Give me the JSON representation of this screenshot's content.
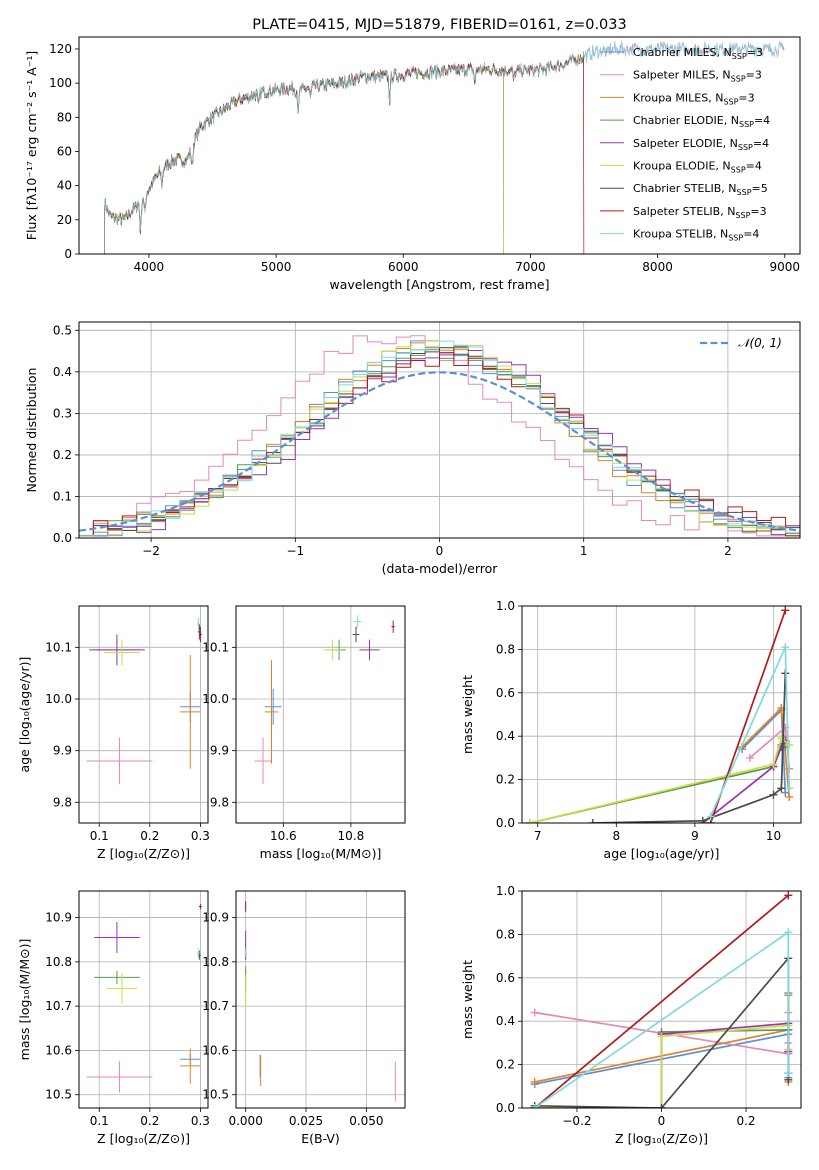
{
  "colors": {
    "Chabrier MILES": "#5b8fd6",
    "Salpeter MILES": "#e58ab8",
    "Kroupa MILES": "#e0822a",
    "Chabrier ELODIE": "#5a9a4a",
    "Salpeter ELODIE": "#9a35b0",
    "Kroupa ELODIE": "#c8de4a",
    "Chabrier STELIB": "#4a4a4a",
    "Salpeter STELIB": "#b01c1c",
    "Kroupa STELIB": "#7edadc",
    "normal": "#5b8fd6"
  },
  "chart_data": [
    {
      "id": "spectrum",
      "type": "line",
      "title": "PLATE=0415, MJD=51879, FIBERID=0161, z=0.033",
      "xlabel": "wavelength [Angstrom, rest frame]",
      "ylabel": "Flux [fλ10⁻¹⁷ erg cm⁻² s⁻¹ A⁻¹]",
      "xlim": [
        3450,
        9120
      ],
      "ylim": [
        0,
        127
      ],
      "xticks": [
        4000,
        5000,
        6000,
        7000,
        8000,
        9000
      ],
      "yticks": [
        0,
        20,
        40,
        60,
        80,
        100,
        120
      ],
      "grid": false,
      "legend": "upper right",
      "continuum": {
        "x": [
          3650,
          3700,
          3800,
          3900,
          4000,
          4100,
          4200,
          4300,
          4400,
          4500,
          4700,
          4900,
          5100,
          5200,
          5300,
          5500,
          5700,
          5900,
          6100,
          6300,
          6500,
          6700,
          6900,
          7100,
          7300,
          7500,
          7600
        ],
        "y": [
          30,
          22,
          20,
          28,
          38,
          50,
          55,
          55,
          74,
          80,
          90,
          95,
          97,
          96,
          98,
          100,
          104,
          104,
          106,
          107,
          108,
          108,
          107,
          108,
          112,
          118,
          120
        ]
      },
      "series": [
        {
          "name": "Chabrier MILES",
          "label": "Chabrier MILES, N",
          "nssp": "=3",
          "x_end": 9000
        },
        {
          "name": "Salpeter MILES",
          "label": "Salpeter MILES, N",
          "nssp": "=3",
          "x_end": 9000
        },
        {
          "name": "Kroupa MILES",
          "label": "Kroupa MILES, N",
          "nssp": "=3",
          "x_end": 7420
        },
        {
          "name": "Chabrier ELODIE",
          "label": "Chabrier ELODIE, N",
          "nssp": "=4",
          "x_end": 6790
        },
        {
          "name": "Salpeter ELODIE",
          "label": "Salpeter ELODIE, N",
          "nssp": "=4",
          "x_end": 6790
        },
        {
          "name": "Kroupa ELODIE",
          "label": "Kroupa ELODIE, N",
          "nssp": "=4",
          "x_end": 6790
        },
        {
          "name": "Chabrier STELIB",
          "label": "Chabrier STELIB, N",
          "nssp": "=5",
          "x_end": 7420
        },
        {
          "name": "Salpeter STELIB",
          "label": "Salpeter STELIB, N",
          "nssp": "=3",
          "x_end": 7420
        },
        {
          "name": "Kroupa STELIB",
          "label": "Kroupa STELIB, N",
          "nssp": "=4",
          "x_end": 9000
        }
      ]
    },
    {
      "id": "residuals",
      "type": "histogram",
      "xlabel": "(data-model)/error",
      "ylabel": "Normed distribution",
      "xlim": [
        -2.5,
        2.5
      ],
      "ylim": [
        0,
        0.52
      ],
      "xticks": [
        -2,
        -1,
        0,
        1,
        2
      ],
      "yticks": [
        0.0,
        0.1,
        0.2,
        0.3,
        0.4,
        0.5
      ],
      "grid": true,
      "legend": "upper right",
      "legend_label": "𝒩(0, 1)",
      "bin_width": 0.1,
      "bin_start": -2.5,
      "series": [
        {
          "name": "Chabrier MILES",
          "shift": -0.05,
          "peak": 0.44
        },
        {
          "name": "Salpeter MILES",
          "shift": -0.35,
          "peak": 0.47
        },
        {
          "name": "Kroupa MILES",
          "shift": -0.05,
          "peak": 0.45
        },
        {
          "name": "Chabrier ELODIE",
          "shift": 0.0,
          "peak": 0.43
        },
        {
          "name": "Salpeter ELODIE",
          "shift": 0.1,
          "peak": 0.44
        },
        {
          "name": "Kroupa ELODIE",
          "shift": 0.0,
          "peak": 0.46
        },
        {
          "name": "Chabrier STELIB",
          "shift": 0.05,
          "peak": 0.42
        },
        {
          "name": "Salpeter STELIB",
          "shift": 0.05,
          "peak": 0.41
        },
        {
          "name": "Kroupa STELIB",
          "shift": 0.0,
          "peak": 0.44
        }
      ]
    },
    {
      "id": "age-vs-Z",
      "type": "scatter",
      "xlabel": "Z [log₁₀(Z/Z⊙)]",
      "ylabel": "age  [log₁₀(age/yr)]",
      "xlim": [
        0.06,
        0.315
      ],
      "ylim": [
        9.76,
        10.18
      ],
      "xticks": [
        0.1,
        0.2,
        0.3
      ],
      "yticks": [
        9.8,
        9.9,
        10.0,
        10.1
      ],
      "grid": true,
      "points": [
        {
          "name": "Chabrier MILES",
          "x": 0.28,
          "y": 9.985,
          "xerr": 0.02,
          "yerr": 0.03
        },
        {
          "name": "Salpeter MILES",
          "x": 0.14,
          "y": 9.88,
          "xerr": 0.065,
          "yerr": 0.045
        },
        {
          "name": "Kroupa MILES",
          "x": 0.28,
          "y": 9.975,
          "xerr": 0.02,
          "yerr": 0.11
        },
        {
          "name": "Chabrier ELODIE",
          "x": 0.135,
          "y": 10.095,
          "xerr": 0.045,
          "yerr": 0.02
        },
        {
          "name": "Salpeter ELODIE",
          "x": 0.135,
          "y": 10.095,
          "xerr": 0.055,
          "yerr": 0.03
        },
        {
          "name": "Kroupa ELODIE",
          "x": 0.145,
          "y": 10.09,
          "xerr": 0.035,
          "yerr": 0.025
        },
        {
          "name": "Chabrier STELIB",
          "x": 0.298,
          "y": 10.13,
          "xerr": 0.003,
          "yerr": 0.015
        },
        {
          "name": "Salpeter STELIB",
          "x": 0.3,
          "y": 10.125,
          "xerr": 0.003,
          "yerr": 0.015
        },
        {
          "name": "Kroupa STELIB",
          "x": 0.296,
          "y": 10.145,
          "xerr": 0.003,
          "yerr": 0.012
        }
      ]
    },
    {
      "id": "age-vs-mass",
      "type": "scatter",
      "xlabel": "mass [log₁₀(M/M⊙)]",
      "ylabel": "",
      "xlim": [
        10.46,
        10.96
      ],
      "ylim": [
        9.76,
        10.18
      ],
      "xticks": [
        10.6,
        10.8
      ],
      "yticks": [
        9.8,
        9.9,
        10.0,
        10.1
      ],
      "grid": true,
      "points": [
        {
          "name": "Chabrier MILES",
          "x": 10.57,
          "y": 9.985,
          "xerr": 0.025,
          "yerr": 0.035
        },
        {
          "name": "Salpeter MILES",
          "x": 10.54,
          "y": 9.88,
          "xerr": 0.025,
          "yerr": 0.045
        },
        {
          "name": "Kroupa MILES",
          "x": 10.565,
          "y": 9.975,
          "xerr": 0.02,
          "yerr": 0.1
        },
        {
          "name": "Chabrier ELODIE",
          "x": 10.765,
          "y": 10.095,
          "xerr": 0.02,
          "yerr": 0.02
        },
        {
          "name": "Salpeter ELODIE",
          "x": 10.855,
          "y": 10.095,
          "xerr": 0.03,
          "yerr": 0.02
        },
        {
          "name": "Kroupa ELODIE",
          "x": 10.745,
          "y": 10.095,
          "xerr": 0.025,
          "yerr": 0.02
        },
        {
          "name": "Chabrier STELIB",
          "x": 10.815,
          "y": 10.125,
          "xerr": 0.01,
          "yerr": 0.015
        },
        {
          "name": "Salpeter STELIB",
          "x": 10.925,
          "y": 10.14,
          "xerr": 0.005,
          "yerr": 0.012
        },
        {
          "name": "Kroupa STELIB",
          "x": 10.82,
          "y": 10.15,
          "xerr": 0.01,
          "yerr": 0.012
        }
      ]
    },
    {
      "id": "weight-vs-age",
      "type": "line",
      "xlabel": "age  [log₁₀(age/yr)]",
      "ylabel": "mass weight",
      "xlim": [
        6.8,
        10.35
      ],
      "ylim": [
        0,
        1
      ],
      "xticks": [
        7,
        8,
        9,
        10
      ],
      "yticks": [
        0.0,
        0.2,
        0.4,
        0.6,
        0.8,
        1.0
      ],
      "grid": true,
      "series": [
        {
          "name": "Chabrier MILES",
          "x": [
            9.6,
            10.1,
            10.15
          ],
          "y": [
            0.34,
            0.52,
            0.14
          ]
        },
        {
          "name": "Salpeter MILES",
          "x": [
            9.7,
            10.15,
            10.2
          ],
          "y": [
            0.3,
            0.44,
            0.25
          ]
        },
        {
          "name": "Kroupa MILES",
          "x": [
            9.6,
            10.1,
            10.2
          ],
          "y": [
            0.35,
            0.53,
            0.12
          ]
        },
        {
          "name": "Chabrier ELODIE",
          "x": [
            6.9,
            10.0,
            10.1,
            10.15
          ],
          "y": [
            0.0,
            0.26,
            0.36,
            0.35
          ]
        },
        {
          "name": "Salpeter ELODIE",
          "x": [
            9.1,
            10.0,
            10.1,
            10.15
          ],
          "y": [
            0.0,
            0.26,
            0.35,
            0.38
          ]
        },
        {
          "name": "Kroupa ELODIE",
          "x": [
            6.9,
            10.0,
            10.1,
            10.2
          ],
          "y": [
            0.0,
            0.27,
            0.39,
            0.36
          ]
        },
        {
          "name": "Chabrier STELIB",
          "x": [
            7.7,
            9.1,
            10.0,
            10.1,
            10.15
          ],
          "y": [
            0.0,
            0.01,
            0.13,
            0.16,
            0.69
          ]
        },
        {
          "name": "Salpeter STELIB",
          "x": [
            9.2,
            10.15
          ],
          "y": [
            0.0,
            0.98
          ]
        },
        {
          "name": "Kroupa STELIB",
          "x": [
            9.2,
            10.15,
            10.2
          ],
          "y": [
            0.03,
            0.81,
            0.16
          ]
        }
      ]
    },
    {
      "id": "mass-vs-Z",
      "type": "scatter",
      "xlabel": "Z [log₁₀(Z/Z⊙)]",
      "ylabel": "mass [log₁₀(M/M⊙)]",
      "xlim": [
        0.06,
        0.315
      ],
      "ylim": [
        10.47,
        10.96
      ],
      "xticks": [
        0.1,
        0.2,
        0.3
      ],
      "yticks": [
        10.5,
        10.6,
        10.7,
        10.8,
        10.9
      ],
      "grid": true,
      "points": [
        {
          "name": "Chabrier MILES",
          "x": 0.28,
          "y": 10.58,
          "xerr": 0.02,
          "yerr": 0.012
        },
        {
          "name": "Salpeter MILES",
          "x": 0.14,
          "y": 10.54,
          "xerr": 0.065,
          "yerr": 0.035
        },
        {
          "name": "Kroupa MILES",
          "x": 0.28,
          "y": 10.565,
          "xerr": 0.02,
          "yerr": 0.04
        },
        {
          "name": "Chabrier ELODIE",
          "x": 0.135,
          "y": 10.765,
          "xerr": 0.045,
          "yerr": 0.015
        },
        {
          "name": "Salpeter ELODIE",
          "x": 0.135,
          "y": 10.855,
          "xerr": 0.045,
          "yerr": 0.035
        },
        {
          "name": "Kroupa ELODIE",
          "x": 0.145,
          "y": 10.74,
          "xerr": 0.03,
          "yerr": 0.035
        },
        {
          "name": "Chabrier STELIB",
          "x": 0.298,
          "y": 10.815,
          "xerr": 0.003,
          "yerr": 0.01
        },
        {
          "name": "Salpeter STELIB",
          "x": 0.3,
          "y": 10.925,
          "xerr": 0.003,
          "yerr": 0.006
        },
        {
          "name": "Kroupa STELIB",
          "x": 0.296,
          "y": 10.82,
          "xerr": 0.003,
          "yerr": 0.01
        }
      ]
    },
    {
      "id": "mass-vs-ebv",
      "type": "scatter",
      "xlabel": "E(B-V)",
      "ylabel": "",
      "xlim": [
        -0.004,
        0.066
      ],
      "ylim": [
        10.47,
        10.96
      ],
      "xticks": [
        0.0,
        0.025,
        0.05
      ],
      "xticklabels": [
        "0.000",
        "0.025",
        "0.050"
      ],
      "yticks": [
        10.5,
        10.6,
        10.7,
        10.8,
        10.9
      ],
      "grid": true,
      "points": [
        {
          "name": "Chabrier MILES",
          "x": 0.006,
          "y": 10.565,
          "xerr": 0.0002,
          "yerr": 0.025
        },
        {
          "name": "Salpeter MILES",
          "x": 0.062,
          "y": 10.53,
          "xerr": 0.0002,
          "yerr": 0.045
        },
        {
          "name": "Kroupa MILES",
          "x": 0.0062,
          "y": 10.555,
          "xerr": 0.0002,
          "yerr": 0.035
        },
        {
          "name": "Chabrier ELODIE",
          "x": 0.0,
          "y": 10.76,
          "xerr": 0.0002,
          "yerr": 0.03
        },
        {
          "name": "Salpeter ELODIE",
          "x": 0.0,
          "y": 10.84,
          "xerr": 0.0002,
          "yerr": 0.03
        },
        {
          "name": "Kroupa ELODIE",
          "x": 0.0,
          "y": 10.73,
          "xerr": 0.0002,
          "yerr": 0.04
        },
        {
          "name": "Chabrier STELIB",
          "x": 0.0,
          "y": 10.815,
          "xerr": 0.0002,
          "yerr": 0.01
        },
        {
          "name": "Salpeter STELIB",
          "x": 0.0,
          "y": 10.925,
          "xerr": 0.0002,
          "yerr": 0.012
        },
        {
          "name": "Kroupa STELIB",
          "x": 0.0,
          "y": 10.82,
          "xerr": 0.0002,
          "yerr": 0.01
        }
      ]
    },
    {
      "id": "weight-vs-Z",
      "type": "line",
      "xlabel": "Z [log₁₀(Z/Z⊙)]",
      "ylabel": "mass weight",
      "xlim": [
        -0.33,
        0.33
      ],
      "ylim": [
        0,
        1
      ],
      "xticks": [
        -0.2,
        0.0,
        0.2
      ],
      "yticks": [
        0.0,
        0.2,
        0.4,
        0.6,
        0.8,
        1.0
      ],
      "grid": true,
      "series": [
        {
          "name": "Chabrier MILES",
          "x": [
            -0.3,
            0.3,
            0.3,
            0.3
          ],
          "y": [
            0.11,
            0.34,
            0.52,
            0.14
          ]
        },
        {
          "name": "Salpeter MILES",
          "x": [
            -0.3,
            0.3,
            0.3,
            0.3
          ],
          "y": [
            0.44,
            0.25,
            0.3,
            0.44
          ]
        },
        {
          "name": "Kroupa MILES",
          "x": [
            -0.3,
            0.3,
            0.3,
            0.3
          ],
          "y": [
            0.12,
            0.36,
            0.53,
            0.12
          ]
        },
        {
          "name": "Chabrier ELODIE",
          "x": [
            -0.3,
            0.0,
            0.0,
            0.3,
            0.3
          ],
          "y": [
            0.0,
            0.0,
            0.35,
            0.36,
            0.26
          ]
        },
        {
          "name": "Salpeter ELODIE",
          "x": [
            -0.3,
            0.0,
            0.0,
            0.3,
            0.3
          ],
          "y": [
            0.0,
            0.0,
            0.34,
            0.39,
            0.26
          ]
        },
        {
          "name": "Kroupa ELODIE",
          "x": [
            -0.3,
            0.0,
            0.0,
            0.3,
            0.3
          ],
          "y": [
            0.0,
            0.0,
            0.33,
            0.38,
            0.27
          ]
        },
        {
          "name": "Chabrier STELIB",
          "x": [
            -0.3,
            0.0,
            0.3,
            0.3,
            0.3
          ],
          "y": [
            0.01,
            0.0,
            0.69,
            0.13,
            0.16
          ]
        },
        {
          "name": "Salpeter STELIB",
          "x": [
            -0.3,
            0.3
          ],
          "y": [
            0.0,
            0.98
          ]
        },
        {
          "name": "Kroupa STELIB",
          "x": [
            -0.3,
            0.3,
            0.3
          ],
          "y": [
            0.0,
            0.81,
            0.16
          ]
        }
      ]
    }
  ]
}
